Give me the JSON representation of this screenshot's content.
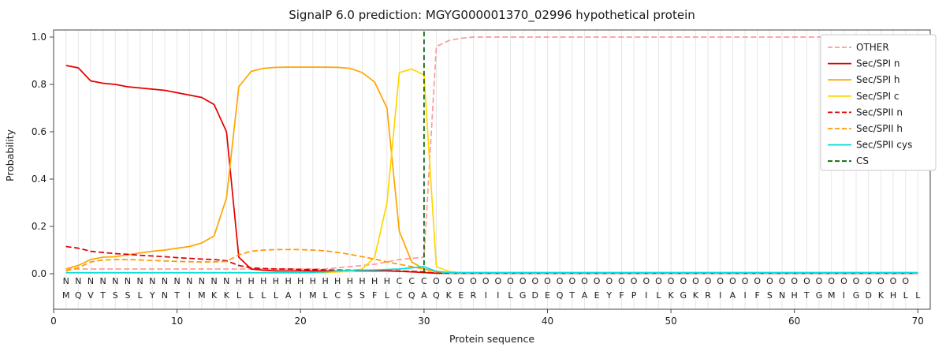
{
  "title": "SignalP 6.0 prediction: MGYG000001370_02996 hypothetical protein",
  "axes": {
    "xlabel": "Protein sequence",
    "ylabel": "Probability",
    "xtick_labels": [
      "0",
      "10",
      "20",
      "30",
      "40",
      "50",
      "60",
      "70"
    ],
    "ytick_labels": [
      "0.0",
      "0.2",
      "0.4",
      "0.6",
      "0.8",
      "1.0"
    ]
  },
  "chart_data": {
    "type": "line",
    "title": "SignalP 6.0 prediction: MGYG000001370_02996 hypothetical protein",
    "xlabel": "Protein sequence",
    "ylabel": "Probability",
    "xlim": [
      0,
      71
    ],
    "ylim": [
      -0.15,
      1.03
    ],
    "grid": "vertical line at every residue position",
    "legend_position": "upper right",
    "x": [
      1,
      2,
      3,
      4,
      5,
      6,
      7,
      8,
      9,
      10,
      11,
      12,
      13,
      14,
      15,
      16,
      17,
      18,
      19,
      20,
      21,
      22,
      23,
      24,
      25,
      26,
      27,
      28,
      29,
      30,
      31,
      32,
      33,
      34,
      35,
      36,
      37,
      38,
      39,
      40,
      41,
      42,
      43,
      44,
      45,
      46,
      47,
      48,
      49,
      50,
      51,
      52,
      53,
      54,
      55,
      56,
      57,
      58,
      59,
      60,
      61,
      62,
      63,
      64,
      65,
      66,
      67,
      68,
      69,
      70
    ],
    "series": [
      {
        "name": "OTHER",
        "color": "#ff9999",
        "style": "dashed",
        "values": [
          0.02,
          0.02,
          0.02,
          0.02,
          0.02,
          0.02,
          0.02,
          0.02,
          0.02,
          0.02,
          0.02,
          0.02,
          0.02,
          0.02,
          0.02,
          0.02,
          0.02,
          0.02,
          0.02,
          0.02,
          0.02,
          0.02,
          0.025,
          0.03,
          0.035,
          0.04,
          0.05,
          0.06,
          0.065,
          0.07,
          0.96,
          0.985,
          0.995,
          1.0,
          1.0,
          1.0,
          1.0,
          1.0,
          1.0,
          1.0,
          1.0,
          1.0,
          1.0,
          1.0,
          1.0,
          1.0,
          1.0,
          1.0,
          1.0,
          1.0,
          1.0,
          1.0,
          1.0,
          1.0,
          1.0,
          1.0,
          1.0,
          1.0,
          1.0,
          1.0,
          1.0,
          1.0,
          1.0,
          1.0,
          1.0,
          1.0,
          1.0,
          1.0,
          1.0,
          1.0
        ]
      },
      {
        "name": "Sec/SPI n",
        "color": "#e60000",
        "style": "solid",
        "values": [
          0.88,
          0.87,
          0.815,
          0.805,
          0.8,
          0.79,
          0.785,
          0.78,
          0.775,
          0.765,
          0.755,
          0.745,
          0.715,
          0.6,
          0.07,
          0.02,
          0.015,
          0.012,
          0.012,
          0.012,
          0.012,
          0.012,
          0.012,
          0.012,
          0.012,
          0.012,
          0.012,
          0.01,
          0.008,
          0.005,
          0.002,
          0.002,
          0.002,
          0.002,
          0.002,
          0.002,
          0.002,
          0.002,
          0.002,
          0.002,
          0.002,
          0.002,
          0.002,
          0.002,
          0.002,
          0.002,
          0.002,
          0.002,
          0.002,
          0.002,
          0.002,
          0.002,
          0.002,
          0.002,
          0.002,
          0.002,
          0.002,
          0.002,
          0.002,
          0.002,
          0.002,
          0.002,
          0.002,
          0.002,
          0.002,
          0.002,
          0.002,
          0.002,
          0.002,
          0.002
        ]
      },
      {
        "name": "Sec/SPI h",
        "color": "#ffa500",
        "style": "solid",
        "values": [
          0.02,
          0.035,
          0.06,
          0.07,
          0.072,
          0.08,
          0.088,
          0.095,
          0.1,
          0.108,
          0.115,
          0.13,
          0.16,
          0.32,
          0.79,
          0.855,
          0.868,
          0.872,
          0.873,
          0.873,
          0.873,
          0.873,
          0.872,
          0.868,
          0.85,
          0.81,
          0.7,
          0.18,
          0.05,
          0.02,
          0.008,
          0.003,
          0.003,
          0.003,
          0.003,
          0.003,
          0.003,
          0.003,
          0.003,
          0.003,
          0.003,
          0.003,
          0.003,
          0.003,
          0.003,
          0.003,
          0.003,
          0.003,
          0.003,
          0.003,
          0.003,
          0.003,
          0.003,
          0.003,
          0.003,
          0.003,
          0.003,
          0.003,
          0.003,
          0.003,
          0.003,
          0.003,
          0.003,
          0.003,
          0.003,
          0.003,
          0.003,
          0.003,
          0.003,
          0.003
        ]
      },
      {
        "name": "Sec/SPI c",
        "color": "#ffd700",
        "style": "solid",
        "values": [
          0.005,
          0.005,
          0.005,
          0.005,
          0.005,
          0.005,
          0.005,
          0.005,
          0.005,
          0.005,
          0.005,
          0.005,
          0.005,
          0.005,
          0.005,
          0.005,
          0.005,
          0.005,
          0.005,
          0.005,
          0.005,
          0.005,
          0.008,
          0.01,
          0.02,
          0.07,
          0.3,
          0.85,
          0.865,
          0.84,
          0.03,
          0.01,
          0.004,
          0.004,
          0.004,
          0.004,
          0.004,
          0.004,
          0.004,
          0.004,
          0.004,
          0.004,
          0.004,
          0.004,
          0.004,
          0.004,
          0.004,
          0.004,
          0.004,
          0.004,
          0.004,
          0.004,
          0.004,
          0.004,
          0.004,
          0.004,
          0.004,
          0.004,
          0.004,
          0.004,
          0.004,
          0.004,
          0.004,
          0.004,
          0.004,
          0.004,
          0.004,
          0.004,
          0.004,
          0.004
        ]
      },
      {
        "name": "Sec/SPII n",
        "color": "#dd0000",
        "style": "dashed",
        "values": [
          0.115,
          0.108,
          0.095,
          0.09,
          0.085,
          0.082,
          0.078,
          0.075,
          0.072,
          0.068,
          0.065,
          0.062,
          0.06,
          0.055,
          0.035,
          0.025,
          0.022,
          0.02,
          0.02,
          0.018,
          0.018,
          0.016,
          0.016,
          0.015,
          0.015,
          0.014,
          0.013,
          0.012,
          0.01,
          0.008,
          0.002,
          0.002,
          0.002,
          0.002,
          0.002,
          0.002,
          0.002,
          0.002,
          0.002,
          0.002,
          0.002,
          0.002,
          0.002,
          0.002,
          0.002,
          0.002,
          0.002,
          0.002,
          0.002,
          0.002,
          0.002,
          0.002,
          0.002,
          0.002,
          0.002,
          0.002,
          0.002,
          0.002,
          0.002,
          0.002,
          0.002,
          0.002,
          0.002,
          0.002,
          0.002,
          0.002,
          0.002,
          0.002,
          0.002,
          0.002
        ]
      },
      {
        "name": "Sec/SPII h",
        "color": "#ff9900",
        "style": "dashed",
        "values": [
          0.012,
          0.025,
          0.05,
          0.058,
          0.06,
          0.06,
          0.058,
          0.056,
          0.054,
          0.052,
          0.051,
          0.05,
          0.05,
          0.052,
          0.08,
          0.095,
          0.1,
          0.102,
          0.102,
          0.102,
          0.1,
          0.097,
          0.09,
          0.082,
          0.072,
          0.062,
          0.05,
          0.04,
          0.03,
          0.02,
          0.01,
          0.003,
          0.003,
          0.003,
          0.003,
          0.003,
          0.003,
          0.003,
          0.003,
          0.003,
          0.003,
          0.003,
          0.003,
          0.003,
          0.003,
          0.003,
          0.003,
          0.003,
          0.003,
          0.003,
          0.003,
          0.003,
          0.003,
          0.003,
          0.003,
          0.003,
          0.003,
          0.003,
          0.003,
          0.003,
          0.003,
          0.003,
          0.003,
          0.003,
          0.003,
          0.003,
          0.003,
          0.003,
          0.003,
          0.003
        ]
      },
      {
        "name": "Sec/SPII cys",
        "color": "#00dddd",
        "style": "solid",
        "values": [
          0.004,
          0.004,
          0.004,
          0.004,
          0.004,
          0.004,
          0.004,
          0.004,
          0.004,
          0.004,
          0.004,
          0.004,
          0.004,
          0.004,
          0.004,
          0.004,
          0.004,
          0.004,
          0.004,
          0.004,
          0.006,
          0.008,
          0.012,
          0.014,
          0.015,
          0.016,
          0.018,
          0.02,
          0.025,
          0.03,
          0.01,
          0.005,
          0.005,
          0.005,
          0.005,
          0.005,
          0.005,
          0.005,
          0.005,
          0.005,
          0.005,
          0.005,
          0.005,
          0.005,
          0.005,
          0.005,
          0.005,
          0.005,
          0.005,
          0.005,
          0.005,
          0.005,
          0.005,
          0.005,
          0.005,
          0.005,
          0.005,
          0.005,
          0.005,
          0.005,
          0.005,
          0.005,
          0.005,
          0.005,
          0.005,
          0.005,
          0.005,
          0.005,
          0.005,
          0.005
        ]
      }
    ],
    "cs": {
      "label": "CS",
      "position": 30,
      "color": "#006400",
      "style": "dashed"
    },
    "sequence": "MQVTSSLYNTIMKKLLLLAIMLCSSFLCQAQKERIILGDEQTAEYFPILKGKRIAIFSNHTGMIGDKHLL",
    "regions": "NNNNNNNNNNNNNNHHHHHHHHHHHHHCCCOOOOOOOOOOOOOOOOOOOOOOOOOOOOOOOOOOOOOOO",
    "region_colors": {
      "N": "#e60000",
      "H": "#ffa500",
      "C": "#ffcc00",
      "O": "#8c8c8c"
    }
  }
}
